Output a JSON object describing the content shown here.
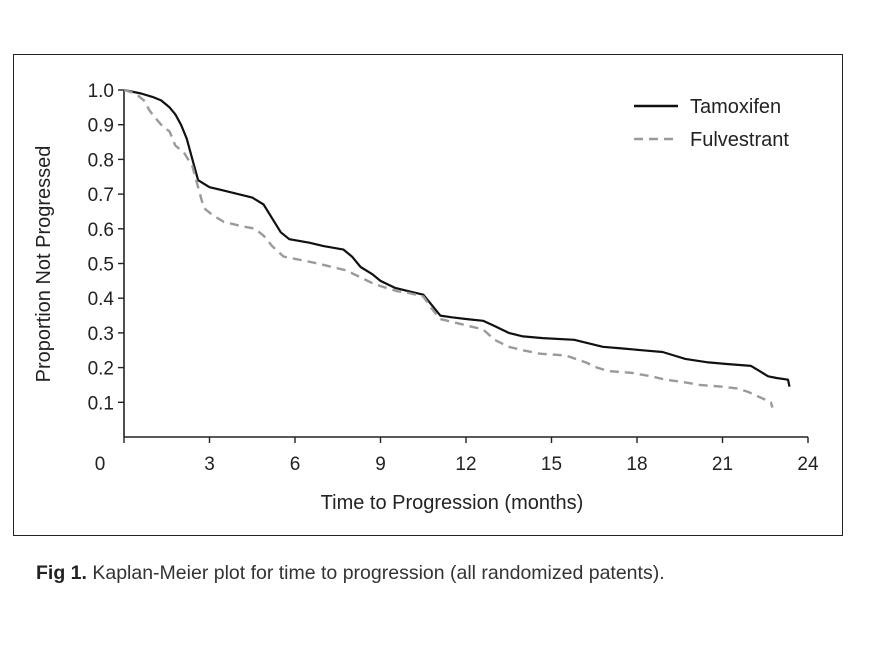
{
  "chart_data": {
    "type": "line",
    "xlabel": "Time to Progression (months)",
    "ylabel": "Proportion Not Progressed",
    "xlim": [
      0,
      24
    ],
    "ylim": [
      0,
      1.0
    ],
    "x_ticks": [
      0,
      3,
      6,
      9,
      12,
      15,
      18,
      21,
      24
    ],
    "y_ticks": [
      0.1,
      0.2,
      0.3,
      0.4,
      0.5,
      0.6,
      0.7,
      0.8,
      0.9,
      1.0
    ],
    "x_tick_labels": [
      "0",
      "3",
      "6",
      "9",
      "12",
      "15",
      "18",
      "21",
      "24"
    ],
    "y_tick_labels": [
      "0.1",
      "0.2",
      "0.3",
      "0.4",
      "0.5",
      "0.6",
      "0.7",
      "0.8",
      "0.9",
      "1.0"
    ],
    "grid": false,
    "legend_position": "top-right",
    "series": [
      {
        "name": "Tamoxifen",
        "style": "solid",
        "color": "#111111",
        "points": [
          [
            0,
            1.0
          ],
          [
            0.6,
            0.99
          ],
          [
            1.0,
            0.98
          ],
          [
            1.3,
            0.97
          ],
          [
            1.6,
            0.95
          ],
          [
            1.8,
            0.93
          ],
          [
            2.0,
            0.9
          ],
          [
            2.2,
            0.86
          ],
          [
            2.4,
            0.8
          ],
          [
            2.6,
            0.74
          ],
          [
            2.8,
            0.73
          ],
          [
            3.0,
            0.72
          ],
          [
            3.5,
            0.71
          ],
          [
            4.0,
            0.7
          ],
          [
            4.5,
            0.69
          ],
          [
            4.9,
            0.67
          ],
          [
            5.2,
            0.63
          ],
          [
            5.5,
            0.59
          ],
          [
            5.8,
            0.57
          ],
          [
            6.5,
            0.56
          ],
          [
            7.0,
            0.55
          ],
          [
            7.7,
            0.54
          ],
          [
            8.0,
            0.52
          ],
          [
            8.3,
            0.49
          ],
          [
            8.7,
            0.47
          ],
          [
            9.0,
            0.45
          ],
          [
            9.5,
            0.43
          ],
          [
            10.0,
            0.42
          ],
          [
            10.5,
            0.41
          ],
          [
            10.8,
            0.38
          ],
          [
            11.1,
            0.35
          ],
          [
            11.5,
            0.345
          ],
          [
            12.0,
            0.34
          ],
          [
            12.6,
            0.335
          ],
          [
            13.0,
            0.32
          ],
          [
            13.5,
            0.3
          ],
          [
            14.0,
            0.29
          ],
          [
            14.7,
            0.285
          ],
          [
            15.8,
            0.28
          ],
          [
            16.3,
            0.27
          ],
          [
            16.8,
            0.26
          ],
          [
            17.5,
            0.255
          ],
          [
            18.2,
            0.25
          ],
          [
            18.9,
            0.245
          ],
          [
            19.3,
            0.235
          ],
          [
            19.7,
            0.225
          ],
          [
            20.5,
            0.215
          ],
          [
            21.2,
            0.21
          ],
          [
            22.0,
            0.205
          ],
          [
            22.3,
            0.19
          ],
          [
            22.6,
            0.175
          ],
          [
            22.9,
            0.17
          ],
          [
            23.3,
            0.165
          ],
          [
            23.35,
            0.145
          ]
        ]
      },
      {
        "name": "Fulvestrant",
        "style": "dashed",
        "color": "#9a9a9a",
        "points": [
          [
            0,
            1.0
          ],
          [
            0.4,
            0.99
          ],
          [
            0.7,
            0.97
          ],
          [
            0.9,
            0.94
          ],
          [
            1.1,
            0.92
          ],
          [
            1.3,
            0.9
          ],
          [
            1.6,
            0.88
          ],
          [
            1.8,
            0.84
          ],
          [
            2.1,
            0.82
          ],
          [
            2.4,
            0.78
          ],
          [
            2.6,
            0.72
          ],
          [
            2.8,
            0.66
          ],
          [
            3.1,
            0.64
          ],
          [
            3.5,
            0.62
          ],
          [
            4.0,
            0.61
          ],
          [
            4.6,
            0.6
          ],
          [
            4.9,
            0.58
          ],
          [
            5.2,
            0.55
          ],
          [
            5.6,
            0.52
          ],
          [
            6.2,
            0.51
          ],
          [
            6.8,
            0.5
          ],
          [
            7.3,
            0.49
          ],
          [
            7.8,
            0.48
          ],
          [
            8.3,
            0.46
          ],
          [
            8.8,
            0.44
          ],
          [
            9.2,
            0.43
          ],
          [
            9.6,
            0.42
          ],
          [
            10.0,
            0.415
          ],
          [
            10.5,
            0.405
          ],
          [
            10.8,
            0.37
          ],
          [
            11.1,
            0.34
          ],
          [
            11.6,
            0.33
          ],
          [
            12.1,
            0.32
          ],
          [
            12.6,
            0.31
          ],
          [
            13.0,
            0.28
          ],
          [
            13.5,
            0.26
          ],
          [
            14.0,
            0.25
          ],
          [
            14.6,
            0.24
          ],
          [
            15.5,
            0.235
          ],
          [
            16.2,
            0.215
          ],
          [
            16.6,
            0.2
          ],
          [
            17.0,
            0.19
          ],
          [
            17.8,
            0.185
          ],
          [
            18.5,
            0.175
          ],
          [
            19.0,
            0.165
          ],
          [
            19.5,
            0.16
          ],
          [
            20.2,
            0.15
          ],
          [
            21.0,
            0.145
          ],
          [
            21.5,
            0.14
          ],
          [
            21.9,
            0.13
          ],
          [
            22.3,
            0.115
          ],
          [
            22.7,
            0.1
          ],
          [
            22.75,
            0.085
          ]
        ]
      }
    ]
  },
  "caption": {
    "label": "Fig 1.",
    "text": " Kaplan-Meier plot for time to progression (all randomized patents)."
  }
}
